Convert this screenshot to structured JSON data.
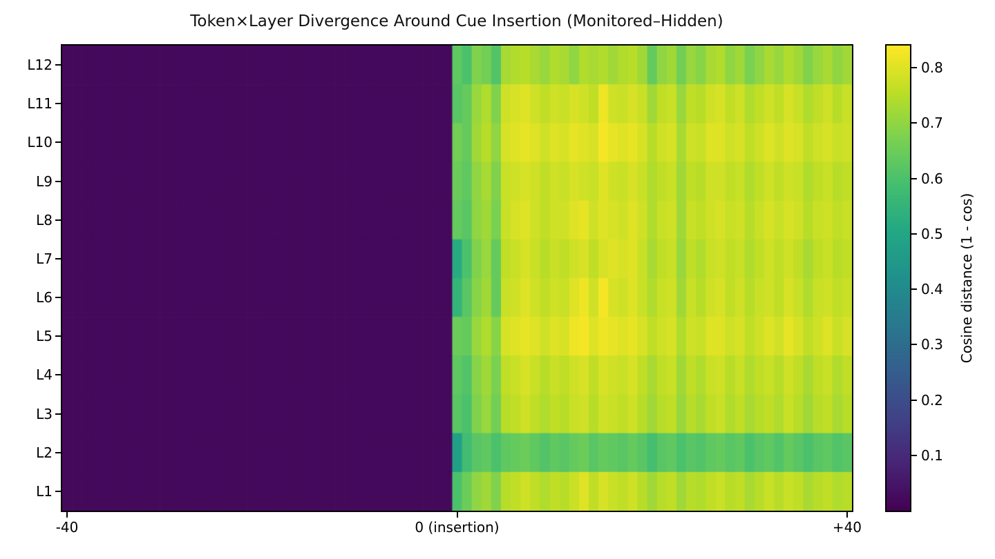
{
  "title": "Token×Layer Divergence Around Cue Insertion (Monitored–Hidden)",
  "chart_data": {
    "type": "heatmap",
    "title": "Token×Layer Divergence Around Cue Insertion (Monitored–Hidden)",
    "colormap": "viridis",
    "grid": false,
    "x_axis": {
      "range": [
        -40,
        40
      ],
      "ticks": [
        {
          "offset": -40,
          "label": "-40"
        },
        {
          "offset": 0,
          "label": "0 (insertion)"
        },
        {
          "offset": 40,
          "label": "+40"
        }
      ]
    },
    "y_axis": {
      "labels": [
        "L12",
        "L11",
        "L10",
        "L9",
        "L8",
        "L7",
        "L6",
        "L5",
        "L4",
        "L3",
        "L2",
        "L1"
      ]
    },
    "colorbar": {
      "label": "Cosine distance (1 - cos)",
      "vmin": 0.0,
      "vmax": 0.84,
      "ticks": [
        {
          "value": 0.1,
          "label": "0.1"
        },
        {
          "value": 0.2,
          "label": "0.2"
        },
        {
          "value": 0.3,
          "label": "0.3"
        },
        {
          "value": 0.4,
          "label": "0.4"
        },
        {
          "value": 0.5,
          "label": "0.5"
        },
        {
          "value": 0.6,
          "label": "0.6"
        },
        {
          "value": 0.7,
          "label": "0.7"
        },
        {
          "value": 0.8,
          "label": "0.8"
        }
      ]
    },
    "pre_insertion_columns": 40,
    "pre_insertion_value": 0.02,
    "rows": [
      {
        "layer": "L12",
        "post_values": [
          0.63,
          0.6,
          0.68,
          0.66,
          0.61,
          0.73,
          0.74,
          0.75,
          0.73,
          0.71,
          0.74,
          0.73,
          0.7,
          0.74,
          0.73,
          0.74,
          0.72,
          0.74,
          0.75,
          0.72,
          0.64,
          0.7,
          0.72,
          0.66,
          0.71,
          0.69,
          0.73,
          0.74,
          0.7,
          0.72,
          0.67,
          0.7,
          0.73,
          0.71,
          0.74,
          0.72,
          0.68,
          0.71,
          0.73,
          0.7,
          0.72
        ]
      },
      {
        "layer": "L11",
        "post_values": [
          0.62,
          0.64,
          0.71,
          0.74,
          0.68,
          0.78,
          0.79,
          0.8,
          0.78,
          0.76,
          0.78,
          0.77,
          0.79,
          0.78,
          0.76,
          0.82,
          0.78,
          0.77,
          0.79,
          0.77,
          0.72,
          0.76,
          0.77,
          0.71,
          0.76,
          0.75,
          0.78,
          0.79,
          0.76,
          0.78,
          0.74,
          0.76,
          0.78,
          0.76,
          0.79,
          0.77,
          0.74,
          0.76,
          0.78,
          0.75,
          0.77
        ]
      },
      {
        "layer": "L10",
        "post_values": [
          0.66,
          0.64,
          0.72,
          0.75,
          0.7,
          0.79,
          0.8,
          0.81,
          0.8,
          0.78,
          0.8,
          0.79,
          0.81,
          0.8,
          0.79,
          0.83,
          0.81,
          0.8,
          0.81,
          0.79,
          0.75,
          0.78,
          0.79,
          0.73,
          0.78,
          0.77,
          0.8,
          0.8,
          0.78,
          0.79,
          0.76,
          0.78,
          0.8,
          0.78,
          0.8,
          0.79,
          0.76,
          0.78,
          0.79,
          0.77,
          0.78
        ]
      },
      {
        "layer": "L9",
        "post_values": [
          0.65,
          0.63,
          0.7,
          0.73,
          0.68,
          0.77,
          0.78,
          0.79,
          0.78,
          0.76,
          0.78,
          0.77,
          0.79,
          0.78,
          0.77,
          0.8,
          0.78,
          0.77,
          0.79,
          0.77,
          0.74,
          0.76,
          0.77,
          0.72,
          0.76,
          0.75,
          0.78,
          0.78,
          0.76,
          0.77,
          0.74,
          0.76,
          0.78,
          0.76,
          0.78,
          0.77,
          0.74,
          0.76,
          0.77,
          0.75,
          0.76
        ]
      },
      {
        "layer": "L8",
        "post_values": [
          0.64,
          0.62,
          0.7,
          0.72,
          0.67,
          0.77,
          0.79,
          0.8,
          0.78,
          0.76,
          0.78,
          0.78,
          0.8,
          0.81,
          0.78,
          0.8,
          0.79,
          0.78,
          0.8,
          0.78,
          0.74,
          0.77,
          0.78,
          0.72,
          0.77,
          0.76,
          0.78,
          0.79,
          0.77,
          0.78,
          0.75,
          0.77,
          0.79,
          0.77,
          0.79,
          0.78,
          0.75,
          0.77,
          0.78,
          0.76,
          0.77
        ]
      },
      {
        "layer": "L7",
        "post_values": [
          0.52,
          0.6,
          0.68,
          0.71,
          0.64,
          0.76,
          0.77,
          0.79,
          0.77,
          0.75,
          0.77,
          0.76,
          0.78,
          0.79,
          0.76,
          0.79,
          0.8,
          0.79,
          0.8,
          0.77,
          0.73,
          0.76,
          0.77,
          0.71,
          0.76,
          0.74,
          0.77,
          0.78,
          0.76,
          0.77,
          0.74,
          0.76,
          0.78,
          0.76,
          0.78,
          0.76,
          0.73,
          0.76,
          0.77,
          0.75,
          0.76
        ]
      },
      {
        "layer": "L6",
        "post_values": [
          0.55,
          0.62,
          0.69,
          0.72,
          0.64,
          0.77,
          0.78,
          0.8,
          0.78,
          0.76,
          0.78,
          0.77,
          0.8,
          0.82,
          0.78,
          0.83,
          0.79,
          0.78,
          0.8,
          0.77,
          0.74,
          0.77,
          0.78,
          0.72,
          0.77,
          0.75,
          0.78,
          0.79,
          0.76,
          0.78,
          0.75,
          0.77,
          0.78,
          0.76,
          0.79,
          0.77,
          0.74,
          0.77,
          0.78,
          0.76,
          0.77
        ]
      },
      {
        "layer": "L5",
        "post_values": [
          0.65,
          0.64,
          0.71,
          0.74,
          0.69,
          0.79,
          0.8,
          0.81,
          0.8,
          0.78,
          0.8,
          0.79,
          0.82,
          0.83,
          0.8,
          0.82,
          0.81,
          0.8,
          0.81,
          0.79,
          0.76,
          0.78,
          0.79,
          0.74,
          0.78,
          0.77,
          0.8,
          0.8,
          0.78,
          0.79,
          0.76,
          0.78,
          0.8,
          0.78,
          0.81,
          0.79,
          0.76,
          0.78,
          0.8,
          0.77,
          0.79
        ]
      },
      {
        "layer": "L4",
        "post_values": [
          0.63,
          0.61,
          0.69,
          0.72,
          0.67,
          0.76,
          0.77,
          0.79,
          0.77,
          0.75,
          0.77,
          0.76,
          0.78,
          0.79,
          0.76,
          0.79,
          0.78,
          0.77,
          0.79,
          0.76,
          0.73,
          0.76,
          0.77,
          0.72,
          0.76,
          0.74,
          0.77,
          0.78,
          0.75,
          0.77,
          0.74,
          0.76,
          0.77,
          0.75,
          0.78,
          0.76,
          0.73,
          0.76,
          0.77,
          0.74,
          0.76
        ]
      },
      {
        "layer": "L3",
        "post_values": [
          0.62,
          0.6,
          0.68,
          0.71,
          0.66,
          0.75,
          0.76,
          0.78,
          0.76,
          0.74,
          0.76,
          0.75,
          0.77,
          0.78,
          0.75,
          0.78,
          0.77,
          0.76,
          0.78,
          0.75,
          0.72,
          0.75,
          0.76,
          0.71,
          0.75,
          0.73,
          0.76,
          0.77,
          0.74,
          0.76,
          0.73,
          0.75,
          0.76,
          0.74,
          0.77,
          0.75,
          0.72,
          0.75,
          0.76,
          0.73,
          0.75
        ]
      },
      {
        "layer": "L2",
        "post_values": [
          0.48,
          0.58,
          0.62,
          0.63,
          0.6,
          0.63,
          0.64,
          0.65,
          0.63,
          0.61,
          0.63,
          0.62,
          0.64,
          0.65,
          0.62,
          0.64,
          0.63,
          0.62,
          0.64,
          0.62,
          0.59,
          0.62,
          0.63,
          0.6,
          0.62,
          0.61,
          0.63,
          0.64,
          0.62,
          0.63,
          0.6,
          0.62,
          0.63,
          0.61,
          0.64,
          0.62,
          0.6,
          0.62,
          0.63,
          0.61,
          0.62
        ]
      },
      {
        "layer": "L1",
        "post_values": [
          0.6,
          0.65,
          0.7,
          0.72,
          0.68,
          0.75,
          0.76,
          0.78,
          0.76,
          0.74,
          0.76,
          0.75,
          0.77,
          0.8,
          0.76,
          0.79,
          0.77,
          0.76,
          0.78,
          0.75,
          0.72,
          0.75,
          0.76,
          0.72,
          0.75,
          0.74,
          0.76,
          0.77,
          0.75,
          0.76,
          0.73,
          0.75,
          0.77,
          0.75,
          0.77,
          0.76,
          0.73,
          0.75,
          0.76,
          0.74,
          0.75
        ]
      }
    ],
    "colors": {
      "pre_insertion_hex": "#440456",
      "background": "#ffffff",
      "axis": "#000000"
    }
  }
}
